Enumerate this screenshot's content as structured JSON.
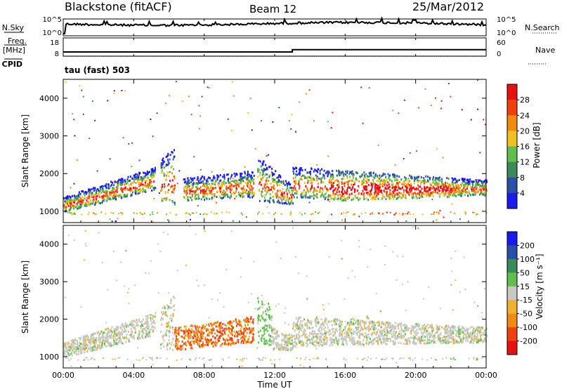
{
  "header": {
    "station": "Blackstone (fitACF)",
    "beam": "Beam 12",
    "date": "25/Mar/2012"
  },
  "left_labels": {
    "nsky": "N.Sky",
    "freq": "Freq.",
    "freq_unit": "[MHz]",
    "cpid": "CPID"
  },
  "right_labels": {
    "nsearch": "N.Search",
    "nave": "Nave"
  },
  "cpid_text": "tau (fast) 503",
  "colors": {
    "power": [
      "#1a1aee",
      "#2b4fa8",
      "#3a8a5a",
      "#5fbf4a",
      "#f0c020",
      "#f08a10",
      "#f04010",
      "#e81010"
    ],
    "velocity": [
      "#e81010",
      "#f04010",
      "#f08a10",
      "#f0b030",
      "#c8c8c0",
      "#5fbf4a",
      "#3a8a5a",
      "#2b4fa8",
      "#1a1aee"
    ]
  },
  "chart_data": [
    {
      "id": "noise",
      "type": "line",
      "x_range": [
        0,
        24
      ],
      "y_ticks_left": [
        "10^5",
        "10^0"
      ],
      "y_ticks_right": [
        "10^5",
        "10^0"
      ],
      "left_label": "N.Sky",
      "right_label": "N.Search"
    },
    {
      "id": "freq_nave",
      "type": "line",
      "x_range": [
        0,
        24
      ],
      "y_ticks_left": [
        "18",
        "8"
      ],
      "y_ticks_right": [
        "60",
        "0"
      ],
      "series": [
        {
          "name": "Freq.",
          "x": [
            0,
            13,
            13,
            24
          ],
          "y": [
            10.5,
            10.5,
            12.5,
            12.5
          ]
        },
        {
          "name": "Nave",
          "x": [
            0,
            24
          ],
          "y": [
            8,
            8
          ]
        }
      ]
    },
    {
      "id": "power",
      "type": "heatmap",
      "ylabel": "Slant Range [km]",
      "x_range": [
        0,
        24
      ],
      "ylim": [
        700,
        4500
      ],
      "y_ticks": [
        1000,
        2000,
        3000,
        4000
      ],
      "colorbar_label": "Power [dB]",
      "colorbar_ticks": [
        4,
        8,
        12,
        16,
        20,
        24,
        28
      ],
      "echo_bands": [
        {
          "t0": 0.0,
          "t1": 5.2,
          "r0": 1000,
          "r1": 1400,
          "r0e": 1600,
          "r1e": 2200
        },
        {
          "t0": 5.5,
          "t1": 6.3,
          "r0": 1200,
          "r1": 2400,
          "r0e": 1200,
          "r1e": 2700
        },
        {
          "t0": 6.8,
          "t1": 10.8,
          "r0": 1300,
          "r1": 1900,
          "r0e": 1400,
          "r1e": 2100
        },
        {
          "t0": 11.0,
          "t1": 13.0,
          "r0": 1300,
          "r1": 2500,
          "r0e": 1200,
          "r1e": 1700
        },
        {
          "t0": 13.0,
          "t1": 16.0,
          "r0": 1400,
          "r1": 2200,
          "r0e": 1300,
          "r1e": 2100
        },
        {
          "t0": 16.0,
          "t1": 24.0,
          "r0": 1300,
          "r1": 2100,
          "r0e": 1450,
          "r1e": 1850
        }
      ]
    },
    {
      "id": "velocity",
      "type": "heatmap",
      "ylabel": "Slant Range [km]",
      "xlabel": "Time UT",
      "x_range": [
        0,
        24
      ],
      "ylim": [
        700,
        4500
      ],
      "y_ticks": [
        1000,
        2000,
        3000,
        4000
      ],
      "x_ticks": [
        "00:00",
        "04:00",
        "08:00",
        "12:00",
        "16:00",
        "20:00",
        "00:00"
      ],
      "colorbar_label": "Velocity [m s⁻¹]",
      "colorbar_ticks": [
        200,
        100,
        50,
        15,
        -15,
        -50,
        -100,
        -200
      ],
      "echo_bands": [
        {
          "t0": 0.0,
          "t1": 5.2,
          "r0": 1000,
          "r1": 1400,
          "r0e": 1600,
          "r1e": 2200,
          "v": 0
        },
        {
          "t0": 5.5,
          "t1": 6.3,
          "r0": 1200,
          "r1": 2400,
          "r0e": 1200,
          "r1e": 2700,
          "v": 0
        },
        {
          "t0": 6.3,
          "t1": 10.8,
          "r0": 1200,
          "r1": 1800,
          "r0e": 1400,
          "r1e": 2100,
          "v": -70
        },
        {
          "t0": 11.0,
          "t1": 11.8,
          "r0": 1400,
          "r1": 2600,
          "r0e": 1300,
          "r1e": 2400,
          "v": 30
        },
        {
          "t0": 11.8,
          "t1": 13.0,
          "r0": 1200,
          "r1": 1800,
          "r0e": 1200,
          "r1e": 1600,
          "v": 0
        },
        {
          "t0": 13.0,
          "t1": 24.0,
          "r0": 1300,
          "r1": 2100,
          "r0e": 1400,
          "r1e": 1800,
          "v": 0
        }
      ]
    }
  ]
}
